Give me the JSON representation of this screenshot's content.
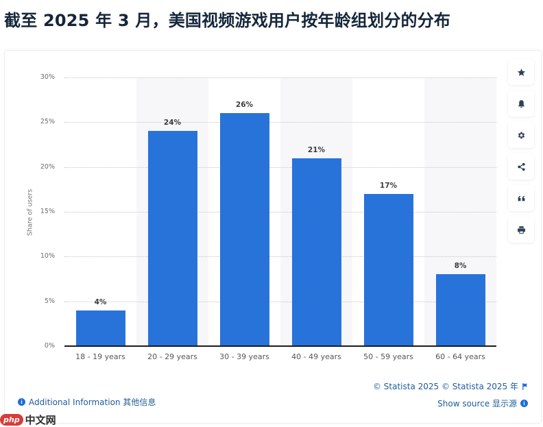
{
  "title": "截至 2025 年 3 月，美国视频游戏用户按年龄组划分的分布",
  "chart_data": {
    "type": "bar",
    "title": "截至 2025 年 3 月，美国视频游戏用户按年龄组划分的分布",
    "categories": [
      "18 - 19 years",
      "20 - 29 years",
      "30 - 39 years",
      "40 - 49 years",
      "50 - 59 years",
      "60 - 64 years"
    ],
    "values": [
      4,
      24,
      26,
      21,
      17,
      8
    ],
    "value_labels": [
      "4%",
      "24%",
      "26%",
      "21%",
      "17%",
      "8%"
    ],
    "xlabel": "",
    "ylabel": "Share of users",
    "ylim": [
      0,
      30
    ],
    "yticks": [
      "0%",
      "5%",
      "10%",
      "15%",
      "20%",
      "25%",
      "30%"
    ],
    "grid": true,
    "legend": "none",
    "bar_color": "#2873d9"
  },
  "toolbar": [
    {
      "name": "star-icon",
      "label": "favorite"
    },
    {
      "name": "bell-icon",
      "label": "notification"
    },
    {
      "name": "gear-icon",
      "label": "settings"
    },
    {
      "name": "share-icon",
      "label": "share"
    },
    {
      "name": "quote-icon",
      "label": "cite"
    },
    {
      "name": "print-icon",
      "label": "print"
    }
  ],
  "footer": {
    "copyright": "© Statista 2025  © Statista 2025 年",
    "show_source": "Show source  显示源",
    "additional_info": "Additional Information  其他信息"
  },
  "watermark": {
    "badge": "php",
    "text": "中文网"
  },
  "colors": {
    "bar": "#2873d9",
    "title": "#14263a",
    "link": "#1f5b9c",
    "shade": "#f7f7f9"
  }
}
